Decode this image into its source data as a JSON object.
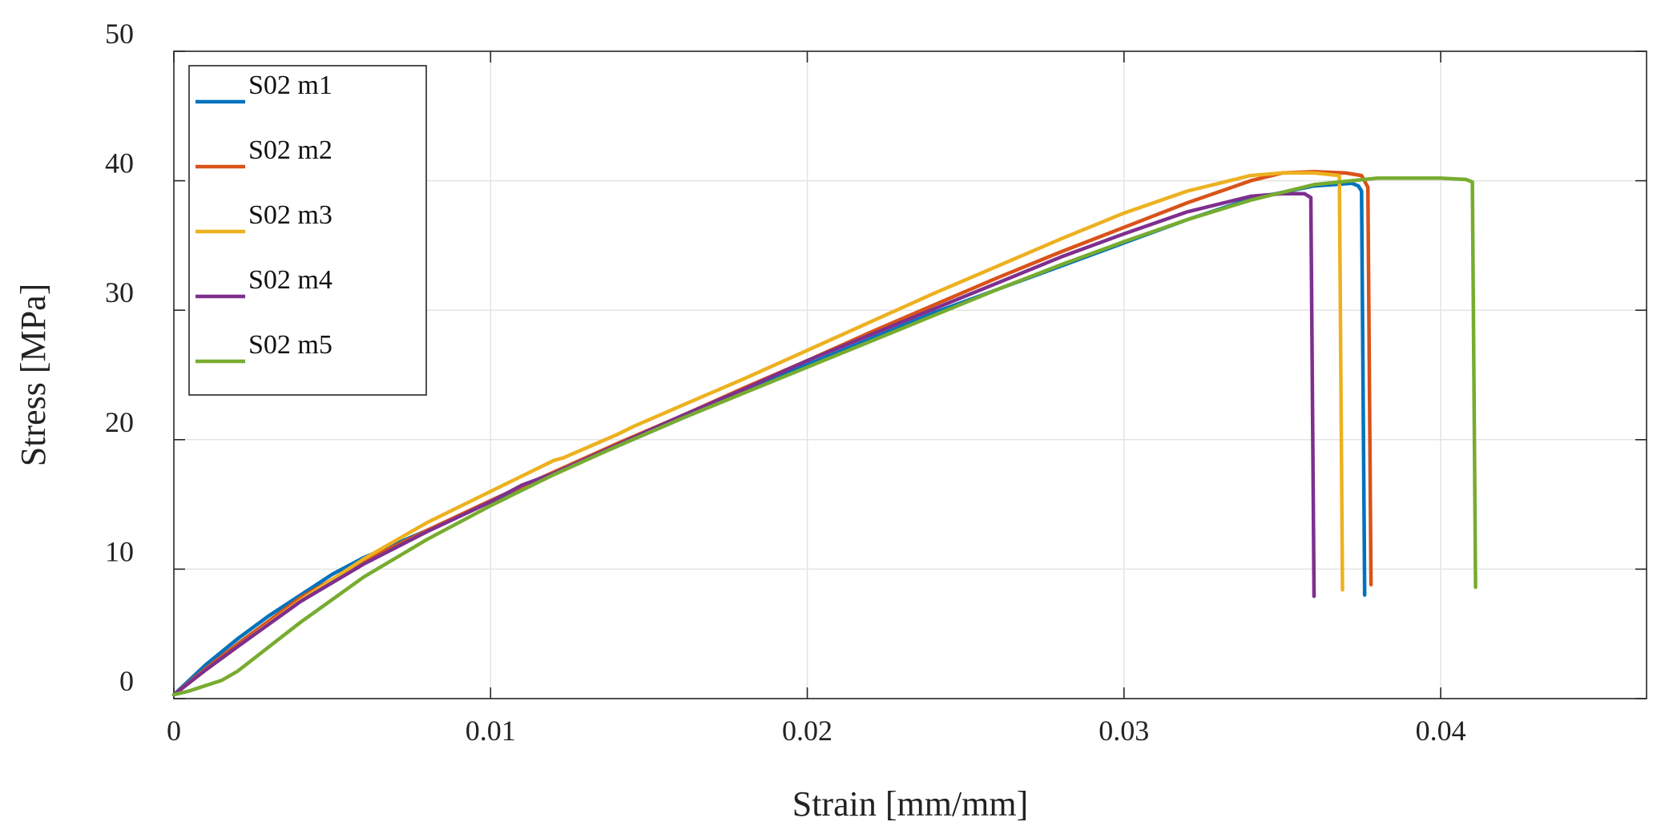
{
  "chart_data": {
    "type": "line",
    "title": "",
    "xlabel": "Strain [mm/mm]",
    "ylabel": "Stress [MPa]",
    "xlim": [
      0,
      0.0465
    ],
    "ylim": [
      0,
      50
    ],
    "xticks": [
      0,
      0.01,
      0.02,
      0.03,
      0.04
    ],
    "xtick_labels": [
      "0",
      "0.01",
      "0.02",
      "0.03",
      "0.04"
    ],
    "yticks": [
      0,
      10,
      20,
      30,
      40,
      50
    ],
    "ytick_labels": [
      "0",
      "10",
      "20",
      "30",
      "40",
      "50"
    ],
    "grid": true,
    "legend_position": "top-left",
    "series": [
      {
        "name": "S02 m1",
        "color": "#0072BD",
        "x": [
          0,
          0.001,
          0.002,
          0.003,
          0.005,
          0.006,
          0.008,
          0.01,
          0.012,
          0.014,
          0.016,
          0.018,
          0.02,
          0.022,
          0.024,
          0.026,
          0.028,
          0.03,
          0.032,
          0.034,
          0.036,
          0.0372,
          0.0374,
          0.0375,
          0.0376
        ],
        "y": [
          0.3,
          2.6,
          4.6,
          6.4,
          9.6,
          10.9,
          13.0,
          15.2,
          17.4,
          19.5,
          21.6,
          23.8,
          25.8,
          27.8,
          29.8,
          31.6,
          33.4,
          35.2,
          37.0,
          38.6,
          39.6,
          39.8,
          39.6,
          39.2,
          8.0
        ]
      },
      {
        "name": "S02 m2",
        "color": "#D95319",
        "x": [
          0,
          0.001,
          0.002,
          0.004,
          0.006,
          0.008,
          0.01,
          0.012,
          0.014,
          0.016,
          0.018,
          0.02,
          0.022,
          0.024,
          0.026,
          0.028,
          0.03,
          0.032,
          0.034,
          0.035,
          0.036,
          0.037,
          0.0375,
          0.0377,
          0.0378
        ],
        "y": [
          0.3,
          2.3,
          4.2,
          7.8,
          10.6,
          13.0,
          15.3,
          17.5,
          19.7,
          21.8,
          24.0,
          26.1,
          28.3,
          30.4,
          32.5,
          34.5,
          36.4,
          38.3,
          40.0,
          40.6,
          40.7,
          40.6,
          40.4,
          39.5,
          8.8
        ]
      },
      {
        "name": "S02 m3",
        "color": "#EDB120",
        "x": [
          0,
          0.001,
          0.002,
          0.004,
          0.006,
          0.008,
          0.01,
          0.012,
          0.0123,
          0.014,
          0.0145,
          0.016,
          0.018,
          0.02,
          0.022,
          0.024,
          0.026,
          0.028,
          0.03,
          0.032,
          0.034,
          0.035,
          0.036,
          0.0368,
          0.0369
        ],
        "y": [
          0.3,
          2.2,
          4.0,
          7.6,
          10.8,
          13.6,
          16.0,
          18.4,
          18.6,
          20.4,
          21.0,
          22.6,
          24.7,
          26.9,
          29.1,
          31.3,
          33.4,
          35.5,
          37.5,
          39.2,
          40.4,
          40.6,
          40.6,
          40.4,
          8.4
        ]
      },
      {
        "name": "S02 m4",
        "color": "#7E2F8E",
        "x": [
          0,
          0.001,
          0.002,
          0.004,
          0.006,
          0.008,
          0.01,
          0.011,
          0.012,
          0.014,
          0.016,
          0.018,
          0.02,
          0.022,
          0.024,
          0.026,
          0.028,
          0.03,
          0.032,
          0.034,
          0.035,
          0.0357,
          0.0359,
          0.036
        ],
        "y": [
          0.3,
          2.2,
          4.0,
          7.5,
          10.4,
          12.9,
          15.2,
          16.5,
          17.4,
          19.6,
          21.8,
          23.9,
          26.1,
          28.1,
          30.1,
          32.1,
          34.1,
          35.9,
          37.6,
          38.8,
          39.0,
          39.0,
          38.7,
          7.9
        ]
      },
      {
        "name": "S02 m5",
        "color": "#77AC30",
        "x": [
          0,
          0.0005,
          0.001,
          0.0015,
          0.002,
          0.003,
          0.004,
          0.006,
          0.008,
          0.01,
          0.012,
          0.014,
          0.016,
          0.018,
          0.02,
          0.022,
          0.024,
          0.026,
          0.028,
          0.03,
          0.032,
          0.034,
          0.036,
          0.038,
          0.04,
          0.0408,
          0.041,
          0.0411
        ],
        "y": [
          0.3,
          0.6,
          1.0,
          1.4,
          2.1,
          4.0,
          5.9,
          9.4,
          12.3,
          14.9,
          17.3,
          19.5,
          21.6,
          23.6,
          25.6,
          27.6,
          29.6,
          31.6,
          33.5,
          35.3,
          37.0,
          38.5,
          39.7,
          40.2,
          40.2,
          40.1,
          39.9,
          8.6
        ]
      }
    ]
  }
}
